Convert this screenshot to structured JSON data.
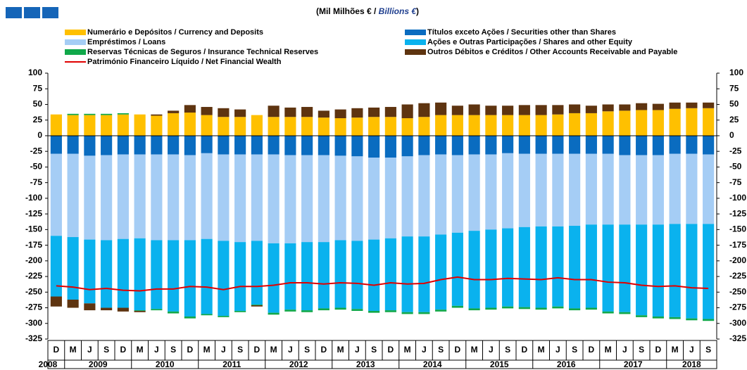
{
  "chart_data": {
    "type": "bar",
    "stacked": true,
    "title": [
      "(Mil Milhões € /",
      "Billions  €",
      ")"
    ],
    "categories": [
      "D",
      "M",
      "J",
      "S",
      "D",
      "M",
      "J",
      "S",
      "D",
      "M",
      "J",
      "S",
      "D",
      "M",
      "J",
      "S",
      "D",
      "M",
      "J",
      "S",
      "D",
      "M",
      "J",
      "S",
      "D",
      "M",
      "J",
      "S",
      "D",
      "M",
      "J",
      "S",
      "D",
      "M",
      "J",
      "S",
      "D",
      "M",
      "J",
      "S"
    ],
    "years": [
      "2008",
      "2009",
      "2010",
      "2011",
      "2012",
      "2013",
      "2014",
      "2015",
      "2016",
      "2017",
      "2018"
    ],
    "ylim": [
      -325,
      100
    ],
    "yticks": [
      100,
      75,
      50,
      25,
      0,
      -25,
      -50,
      -75,
      -100,
      -125,
      -150,
      -175,
      -200,
      -225,
      -250,
      -275,
      -300,
      -325
    ],
    "series": [
      {
        "name": "Numerário e Depósitos / Currency and Deposits",
        "color": "#FFC000",
        "values": [
          34,
          33,
          33,
          33,
          34,
          34,
          32,
          36,
          37,
          33,
          30,
          30,
          33,
          30,
          30,
          30,
          29,
          28,
          29,
          30,
          30,
          28,
          30,
          33,
          33,
          33,
          33,
          33,
          33,
          33,
          34,
          36,
          36,
          39,
          40,
          41,
          41,
          43,
          44,
          44
        ]
      },
      {
        "name": "Títulos exceto Ações / Securities other than Shares",
        "color": "#0A6CC0",
        "values": [
          -29,
          -29,
          -32,
          -31,
          -30,
          -30,
          -30,
          -30,
          -31,
          -28,
          -30,
          -30,
          -30,
          -30,
          -31,
          -31,
          -31,
          -32,
          -33,
          -35,
          -35,
          -33,
          -31,
          -30,
          -31,
          -30,
          -30,
          -28,
          -29,
          -29,
          -29,
          -29,
          -29,
          -29,
          -31,
          -31,
          -31,
          -29,
          -29,
          -30
        ]
      },
      {
        "name": "Empréstimos / Loans",
        "color": "#A5CDF5",
        "values": [
          -131,
          -133,
          -134,
          -136,
          -135,
          -134,
          -137,
          -137,
          -136,
          -137,
          -138,
          -140,
          -138,
          -142,
          -141,
          -139,
          -139,
          -135,
          -135,
          -131,
          -129,
          -128,
          -130,
          -128,
          -124,
          -122,
          -120,
          -120,
          -117,
          -116,
          -116,
          -115,
          -113,
          -113,
          -111,
          -111,
          -111,
          -112,
          -112,
          -111
        ]
      },
      {
        "name": "Ações e Outras Participações / Shares and other Equity",
        "color": "#0AB2EE",
        "values": [
          -97,
          -100,
          -102,
          -108,
          -110,
          -115,
          -110,
          -114,
          -122,
          -120,
          -120,
          -110,
          -102,
          -111,
          -106,
          -109,
          -106,
          -108,
          -109,
          -114,
          -115,
          -121,
          -121,
          -120,
          -117,
          -124,
          -125,
          -125,
          -128,
          -130,
          -128,
          -132,
          -133,
          -139,
          -140,
          -145,
          -147,
          -149,
          -151,
          -152
        ]
      },
      {
        "name": "Reservas Técnicas de Seguros / Insurance Technical Reserves",
        "color": "#10A84A",
        "values": [
          0,
          2,
          2,
          2,
          2,
          -1,
          -2,
          -3,
          -3,
          -2,
          -2,
          -2,
          -1,
          -3,
          -3,
          -3,
          -3,
          -3,
          -3,
          -3,
          -3,
          -3,
          -3,
          -3,
          -3,
          -3,
          -3,
          -3,
          -3,
          -3,
          -3,
          -3,
          -3,
          -3,
          -3,
          -3,
          -3,
          -3,
          -3,
          -3
        ]
      },
      {
        "name": "Outros Débitos e Créditos / Other Accounts Receivable and Payable",
        "color": "#5E3410",
        "values": [
          -16,
          -13,
          -11,
          -4,
          -6,
          -2,
          2,
          4,
          12,
          13,
          14,
          12,
          -2,
          18,
          15,
          16,
          11,
          14,
          15,
          15,
          16,
          22,
          22,
          20,
          15,
          17,
          15,
          15,
          16,
          16,
          15,
          14,
          12,
          11,
          10,
          11,
          10,
          10,
          9,
          9
        ]
      },
      {
        "name": "Património Financeiro Líquido / Net Financial Wealth",
        "color": "#E00000",
        "type": "line",
        "values": [
          -240,
          -242,
          -246,
          -244,
          -247,
          -248,
          -245,
          -245,
          -241,
          -242,
          -246,
          -241,
          -241,
          -239,
          -235,
          -235,
          -237,
          -235,
          -236,
          -239,
          -235,
          -237,
          -236,
          -230,
          -226,
          -230,
          -230,
          -228,
          -229,
          -230,
          -227,
          -230,
          -230,
          -234,
          -235,
          -239,
          -241,
          -240,
          -243,
          -244
        ]
      }
    ]
  }
}
